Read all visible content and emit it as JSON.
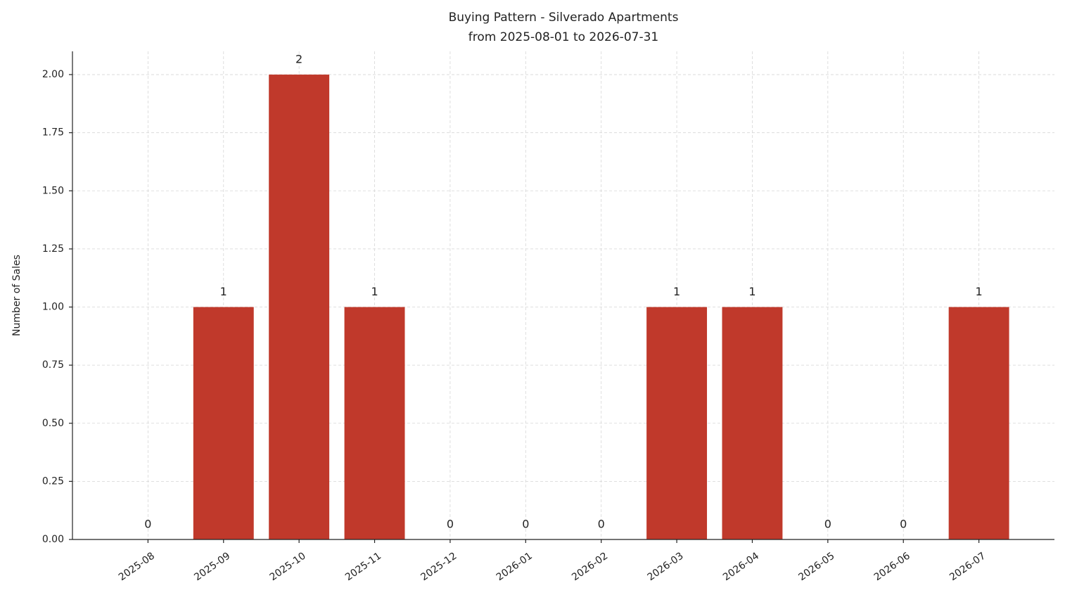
{
  "chart_data": {
    "type": "bar",
    "title": "Buying Pattern - Silverado Apartments",
    "subtitle": "from 2025-08-01 to 2026-07-31",
    "y_label": "Number of Sales",
    "categories": [
      "2025-08",
      "2025-09",
      "2025-10",
      "2025-11",
      "2025-12",
      "2026-01",
      "2026-02",
      "2026-03",
      "2026-04",
      "2026-05",
      "2026-06",
      "2026-07"
    ],
    "values": [
      0,
      1,
      2,
      1,
      0,
      0,
      0,
      1,
      1,
      0,
      0,
      1
    ],
    "color": "#c0392b",
    "ylim": [
      0,
      2.1
    ],
    "yticks": [
      {
        "value": 0,
        "label": "0.00"
      },
      {
        "value": 0.25,
        "label": "0.25"
      },
      {
        "value": 0.5,
        "label": "0.50"
      },
      {
        "value": 0.75,
        "label": "0.75"
      },
      {
        "value": 1,
        "label": "1.00"
      },
      {
        "value": 1.25,
        "label": "1.25"
      },
      {
        "value": 1.5,
        "label": "1.50"
      },
      {
        "value": 1.75,
        "label": "1.75"
      },
      {
        "value": 2,
        "label": "2.00"
      }
    ],
    "grid": true
  }
}
